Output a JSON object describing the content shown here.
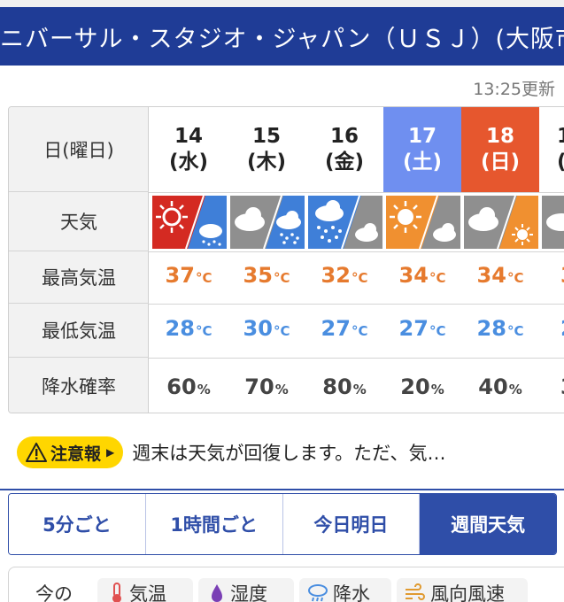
{
  "header": {
    "title": "ニバーサル・スタジオ・ジャパン（ＵＳＪ）(大阪市"
  },
  "updated_label": "13:25更新",
  "table": {
    "labels": {
      "date": "日(曜日)",
      "weather": "天気",
      "high": "最高気温",
      "low": "最低気温",
      "precip": "降水確率"
    },
    "unit_temp": "°C",
    "unit_pct": "%",
    "days": [
      {
        "date": "14",
        "dow": "(水)",
        "high": "37",
        "low": "28",
        "precip": "60",
        "kind": "weekday",
        "weather": "sunny-then-rain"
      },
      {
        "date": "15",
        "dow": "(木)",
        "high": "35",
        "low": "30",
        "precip": "70",
        "kind": "weekday",
        "weather": "cloudy-then-rain"
      },
      {
        "date": "16",
        "dow": "(金)",
        "high": "32",
        "low": "27",
        "precip": "80",
        "kind": "weekday",
        "weather": "rain-then-cloudy"
      },
      {
        "date": "17",
        "dow": "(土)",
        "high": "34",
        "low": "27",
        "precip": "20",
        "kind": "saturday",
        "weather": "sunny-then-cloudy"
      },
      {
        "date": "18",
        "dow": "(日)",
        "high": "34",
        "low": "28",
        "precip": "40",
        "kind": "sunday",
        "weather": "cloudy-then-sunny"
      },
      {
        "date": "1",
        "dow": "(",
        "high": "3",
        "low": "2",
        "precip": "3",
        "kind": "weekday",
        "weather": "partial"
      }
    ]
  },
  "notice": {
    "badge": "注意報",
    "text": "週末は天気が回復します。ただ、気…"
  },
  "tabs": [
    {
      "label": "5分ごと",
      "active": false
    },
    {
      "label": "1時間ごと",
      "active": false
    },
    {
      "label": "今日明日",
      "active": false
    },
    {
      "label": "週間天気",
      "active": true
    }
  ],
  "sub_bar": {
    "lead": "今の",
    "items": [
      "気温",
      "湿度",
      "降水",
      "風向風速"
    ]
  },
  "colors": {
    "header": "#1f3c96",
    "accent": "#2f4ea8",
    "saturday": "#6f8ff0",
    "sunday": "#e6572e",
    "high": "#e67a2e",
    "low": "#4a8ee0",
    "badge": "#ffd600"
  }
}
